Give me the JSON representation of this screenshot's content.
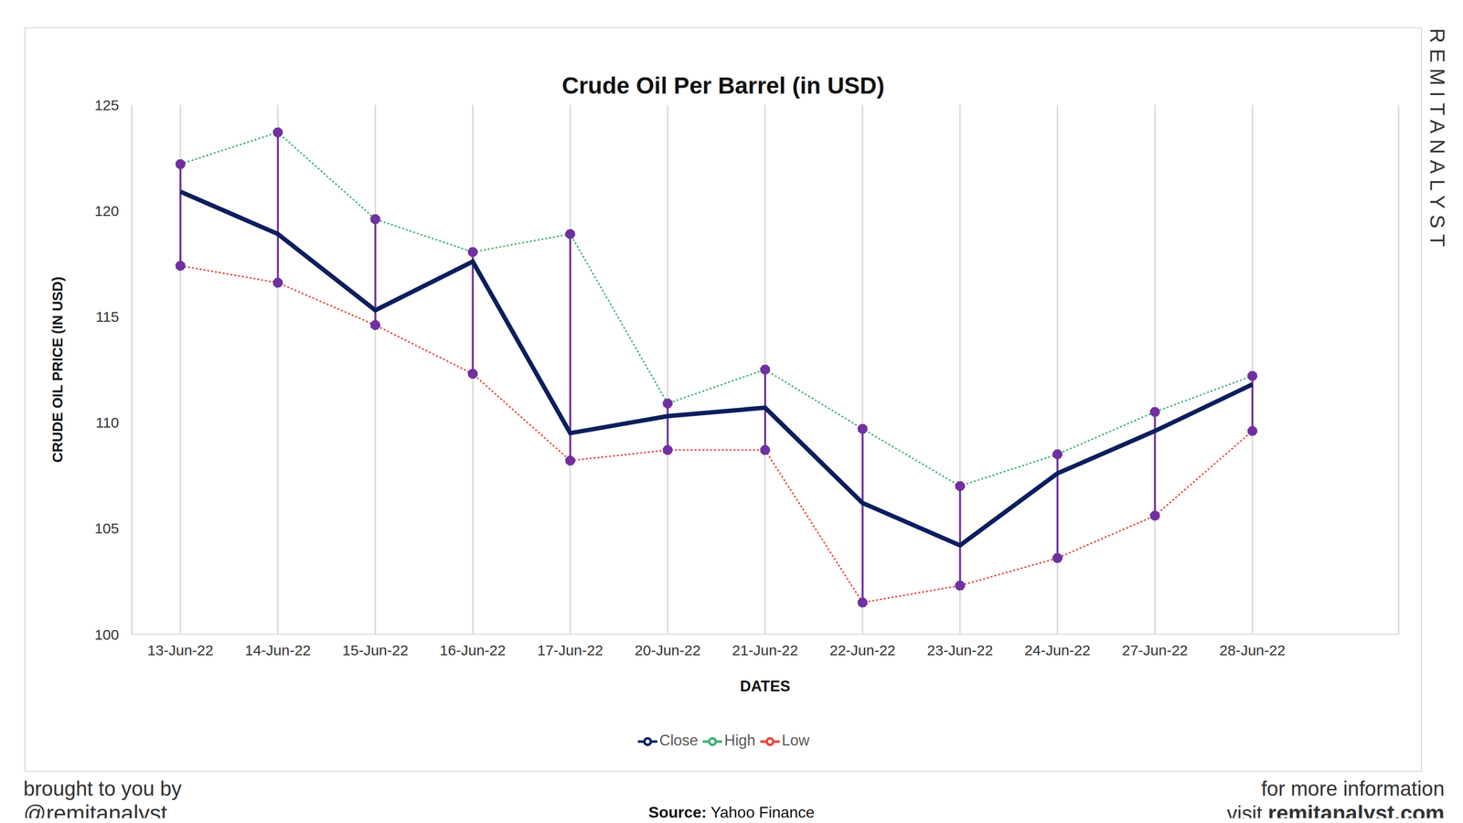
{
  "chart_data": {
    "type": "line",
    "title": "Crude Oil Per Barrel (in USD)",
    "x_label": "DATES",
    "y_label": "CRUDE OIL PRICE (IN USD)",
    "categories": [
      "13-Jun-22",
      "14-Jun-22",
      "15-Jun-22",
      "16-Jun-22",
      "17-Jun-22",
      "20-Jun-22",
      "21-Jun-22",
      "22-Jun-22",
      "23-Jun-22",
      "24-Jun-22",
      "27-Jun-22",
      "28-Jun-22"
    ],
    "series": [
      {
        "name": "High",
        "color": "#3cb371",
        "line_style": "dotted",
        "marker": "circle",
        "values": [
          122.2,
          123.7,
          119.6,
          118.05,
          118.9,
          110.9,
          112.5,
          109.7,
          107.0,
          108.5,
          110.5,
          112.2
        ]
      },
      {
        "name": "Low",
        "color": "#e8453c",
        "line_style": "dotted",
        "marker": "circle",
        "values": [
          117.4,
          116.6,
          114.6,
          112.3,
          108.2,
          108.7,
          108.7,
          101.5,
          102.3,
          103.6,
          105.6,
          109.6
        ]
      },
      {
        "name": "Close",
        "color": "#0b1f5c",
        "line_style": "solid",
        "marker": "none",
        "values": [
          120.9,
          118.9,
          115.3,
          117.6,
          109.5,
          110.3,
          110.7,
          106.2,
          104.2,
          107.6,
          109.6,
          111.8
        ]
      }
    ],
    "ylim": [
      100,
      125
    ],
    "yticks": [
      100,
      105,
      110,
      115,
      120,
      125
    ],
    "grid": true,
    "legend": "bottom",
    "watermark": "REMITANALYST",
    "footer": {
      "left": [
        "brought to you by",
        "@remitanalyst"
      ],
      "source_label": "Source:",
      "source": "Yahoo Finance",
      "right": [
        "for more information",
        "visit",
        "remitanalyst.com"
      ]
    }
  }
}
